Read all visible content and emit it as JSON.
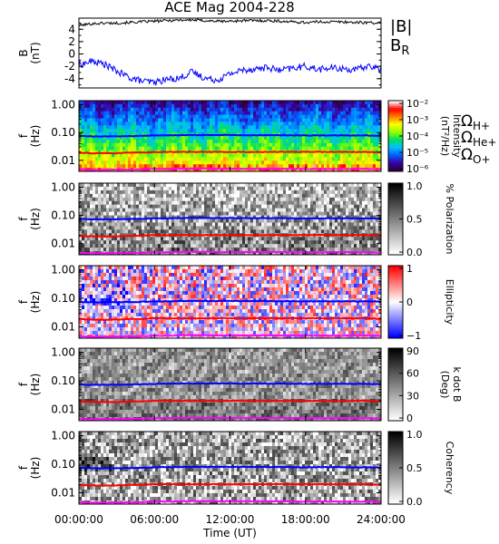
{
  "chart_data": [
    {
      "type": "line",
      "title": "ACE Mag 2004-228",
      "ylabel": "B",
      "ylabel_unit": "(nT)",
      "yticks": [
        "4",
        "2",
        "0",
        "-2",
        "-4"
      ],
      "ytick_values": [
        4,
        2,
        0,
        -2,
        -4
      ],
      "ylim": [
        -5.5,
        5.8
      ],
      "legend": [
        {
          "label": "|B|",
          "color": "#000000"
        },
        {
          "label": "B",
          "sub": "R",
          "color": "#0000ff"
        }
      ],
      "series": [
        {
          "name": "|B|",
          "color": "#000000",
          "x": [
            0,
            1,
            2,
            3,
            4,
            5,
            6,
            7,
            8,
            9,
            10,
            11,
            12,
            13,
            14,
            15,
            16,
            17,
            18,
            19,
            20,
            21,
            22,
            23,
            24
          ],
          "y": [
            4.6,
            4.9,
            5.0,
            5.0,
            5.1,
            5.2,
            5.3,
            5.4,
            5.5,
            5.5,
            5.4,
            5.3,
            5.3,
            5.4,
            5.4,
            5.4,
            5.3,
            5.2,
            5.1,
            5.2,
            5.2,
            5.2,
            5.1,
            5.1,
            5.0
          ]
        },
        {
          "name": "B_R",
          "color": "#0000ff",
          "x": [
            0,
            1,
            2,
            3,
            4,
            5,
            6,
            7,
            8,
            9,
            10,
            11,
            12,
            13,
            14,
            15,
            16,
            17,
            18,
            19,
            20,
            21,
            22,
            23,
            24
          ],
          "y": [
            -1.8,
            -1.2,
            -1.6,
            -2.8,
            -3.8,
            -4.4,
            -4.6,
            -4.1,
            -3.9,
            -2.9,
            -3.9,
            -4.2,
            -3.2,
            -2.6,
            -2.4,
            -2.2,
            -2.7,
            -2.3,
            -2.0,
            -2.5,
            -2.3,
            -2.4,
            -2.6,
            -1.9,
            -2.6
          ]
        }
      ]
    },
    {
      "type": "heatmap",
      "ylabel": "f",
      "ylabel_unit": "(Hz)",
      "yscale": "log",
      "ylim": [
        0.004,
        1.4
      ],
      "yticks": [
        "1.00",
        "0.10",
        "0.01"
      ],
      "ytick_values": [
        1,
        0.1,
        0.01
      ],
      "colorbar": {
        "scale": "log",
        "ticks": [
          "10⁻²",
          "10⁻³",
          "10⁻⁴",
          "10⁻⁵",
          "10⁻⁶"
        ],
        "label": "Intensity",
        "unit": "(nT²/Hz)"
      },
      "legend": [
        {
          "label": "Ω",
          "sub": "H+",
          "color": "#0000ff"
        },
        {
          "label": "Ω",
          "sub": "He+",
          "color": "#ff0000"
        },
        {
          "label": "Ω",
          "sub": "O+",
          "color": "#ff00ff"
        }
      ],
      "colormap": [
        "#2a003a",
        "#3a00a8",
        "#0060ff",
        "#00c0ff",
        "#00e060",
        "#90ff00",
        "#ffff00",
        "#ff8000",
        "#ff0000",
        "#ffffff"
      ]
    },
    {
      "type": "heatmap",
      "ylabel": "f",
      "ylabel_unit": "(Hz)",
      "yscale": "log",
      "ylim": [
        0.004,
        1.4
      ],
      "yticks": [
        "1.00",
        "0.10",
        "0.01"
      ],
      "ytick_values": [
        1,
        0.1,
        0.01
      ],
      "colorbar": {
        "scale": "linear",
        "range": [
          0,
          1
        ],
        "ticks": [
          "1.0",
          "0.5",
          "0.0"
        ],
        "label": "% Polarization"
      },
      "colormap": [
        "#ffffff",
        "#000000"
      ]
    },
    {
      "type": "heatmap",
      "ylabel": "f",
      "ylabel_unit": "(Hz)",
      "yscale": "log",
      "ylim": [
        0.004,
        1.4
      ],
      "yticks": [
        "1.00",
        "0.10",
        "0.01"
      ],
      "ytick_values": [
        1,
        0.1,
        0.01
      ],
      "colorbar": {
        "scale": "linear",
        "range": [
          -1,
          1
        ],
        "ticks": [
          "1",
          "0",
          "−1"
        ],
        "label": "Ellipticity"
      },
      "colormap": [
        "#0000ff",
        "#ffffff",
        "#ff0000"
      ]
    },
    {
      "type": "heatmap",
      "ylabel": "f",
      "ylabel_unit": "(Hz)",
      "yscale": "log",
      "ylim": [
        0.004,
        1.4
      ],
      "yticks": [
        "1.00",
        "0.10",
        "0.01"
      ],
      "ytick_values": [
        1,
        0.1,
        0.01
      ],
      "colorbar": {
        "scale": "linear",
        "range": [
          0,
          90
        ],
        "ticks": [
          "90",
          "60",
          "30",
          "0"
        ],
        "label": "k dot B",
        "unit": "(Deg)"
      },
      "colormap": [
        "#ffffff",
        "#000000"
      ]
    },
    {
      "type": "heatmap",
      "ylabel": "f",
      "ylabel_unit": "(Hz)",
      "yscale": "log",
      "ylim": [
        0.004,
        1.4
      ],
      "yticks": [
        "1.00",
        "0.10",
        "0.01"
      ],
      "ytick_values": [
        1,
        0.1,
        0.01
      ],
      "colorbar": {
        "scale": "linear",
        "range": [
          0,
          1
        ],
        "ticks": [
          "1.0",
          "0.5",
          "0.0"
        ],
        "label": "Coherency"
      },
      "colormap": [
        "#ffffff",
        "#000000"
      ]
    }
  ],
  "gyrofrequency_lines": {
    "H+": {
      "color": "#0000ff",
      "f_hz": [
        0.075,
        0.072,
        0.072,
        0.073,
        0.074,
        0.076,
        0.078,
        0.079,
        0.08,
        0.081,
        0.081,
        0.081,
        0.081,
        0.08,
        0.08,
        0.08,
        0.08,
        0.079,
        0.078,
        0.079,
        0.079,
        0.079,
        0.078,
        0.078,
        0.077
      ]
    },
    "He+": {
      "color": "#ff0000",
      "f_hz": [
        0.019,
        0.018,
        0.018,
        0.018,
        0.019,
        0.019,
        0.02,
        0.02,
        0.02,
        0.02,
        0.02,
        0.02,
        0.02,
        0.02,
        0.02,
        0.02,
        0.02,
        0.02,
        0.02,
        0.02,
        0.02,
        0.02,
        0.02,
        0.02,
        0.019
      ]
    },
    "O+": {
      "color": "#ff00ff",
      "f_hz": [
        0.0047,
        0.0045,
        0.0045,
        0.0046,
        0.0046,
        0.0047,
        0.0049,
        0.0049,
        0.005,
        0.0051,
        0.0051,
        0.005,
        0.005,
        0.005,
        0.005,
        0.005,
        0.005,
        0.0049,
        0.0049,
        0.0049,
        0.0049,
        0.0049,
        0.0049,
        0.0049,
        0.0048
      ]
    }
  },
  "time_axis": {
    "label": "Time (UT)",
    "range_hours": [
      0,
      24
    ],
    "tick_hours": [
      0,
      6,
      12,
      18,
      24
    ],
    "ticks": [
      "00:00:00",
      "06:00:00",
      "12:00:00",
      "18:00:00",
      "24:00:00"
    ]
  }
}
